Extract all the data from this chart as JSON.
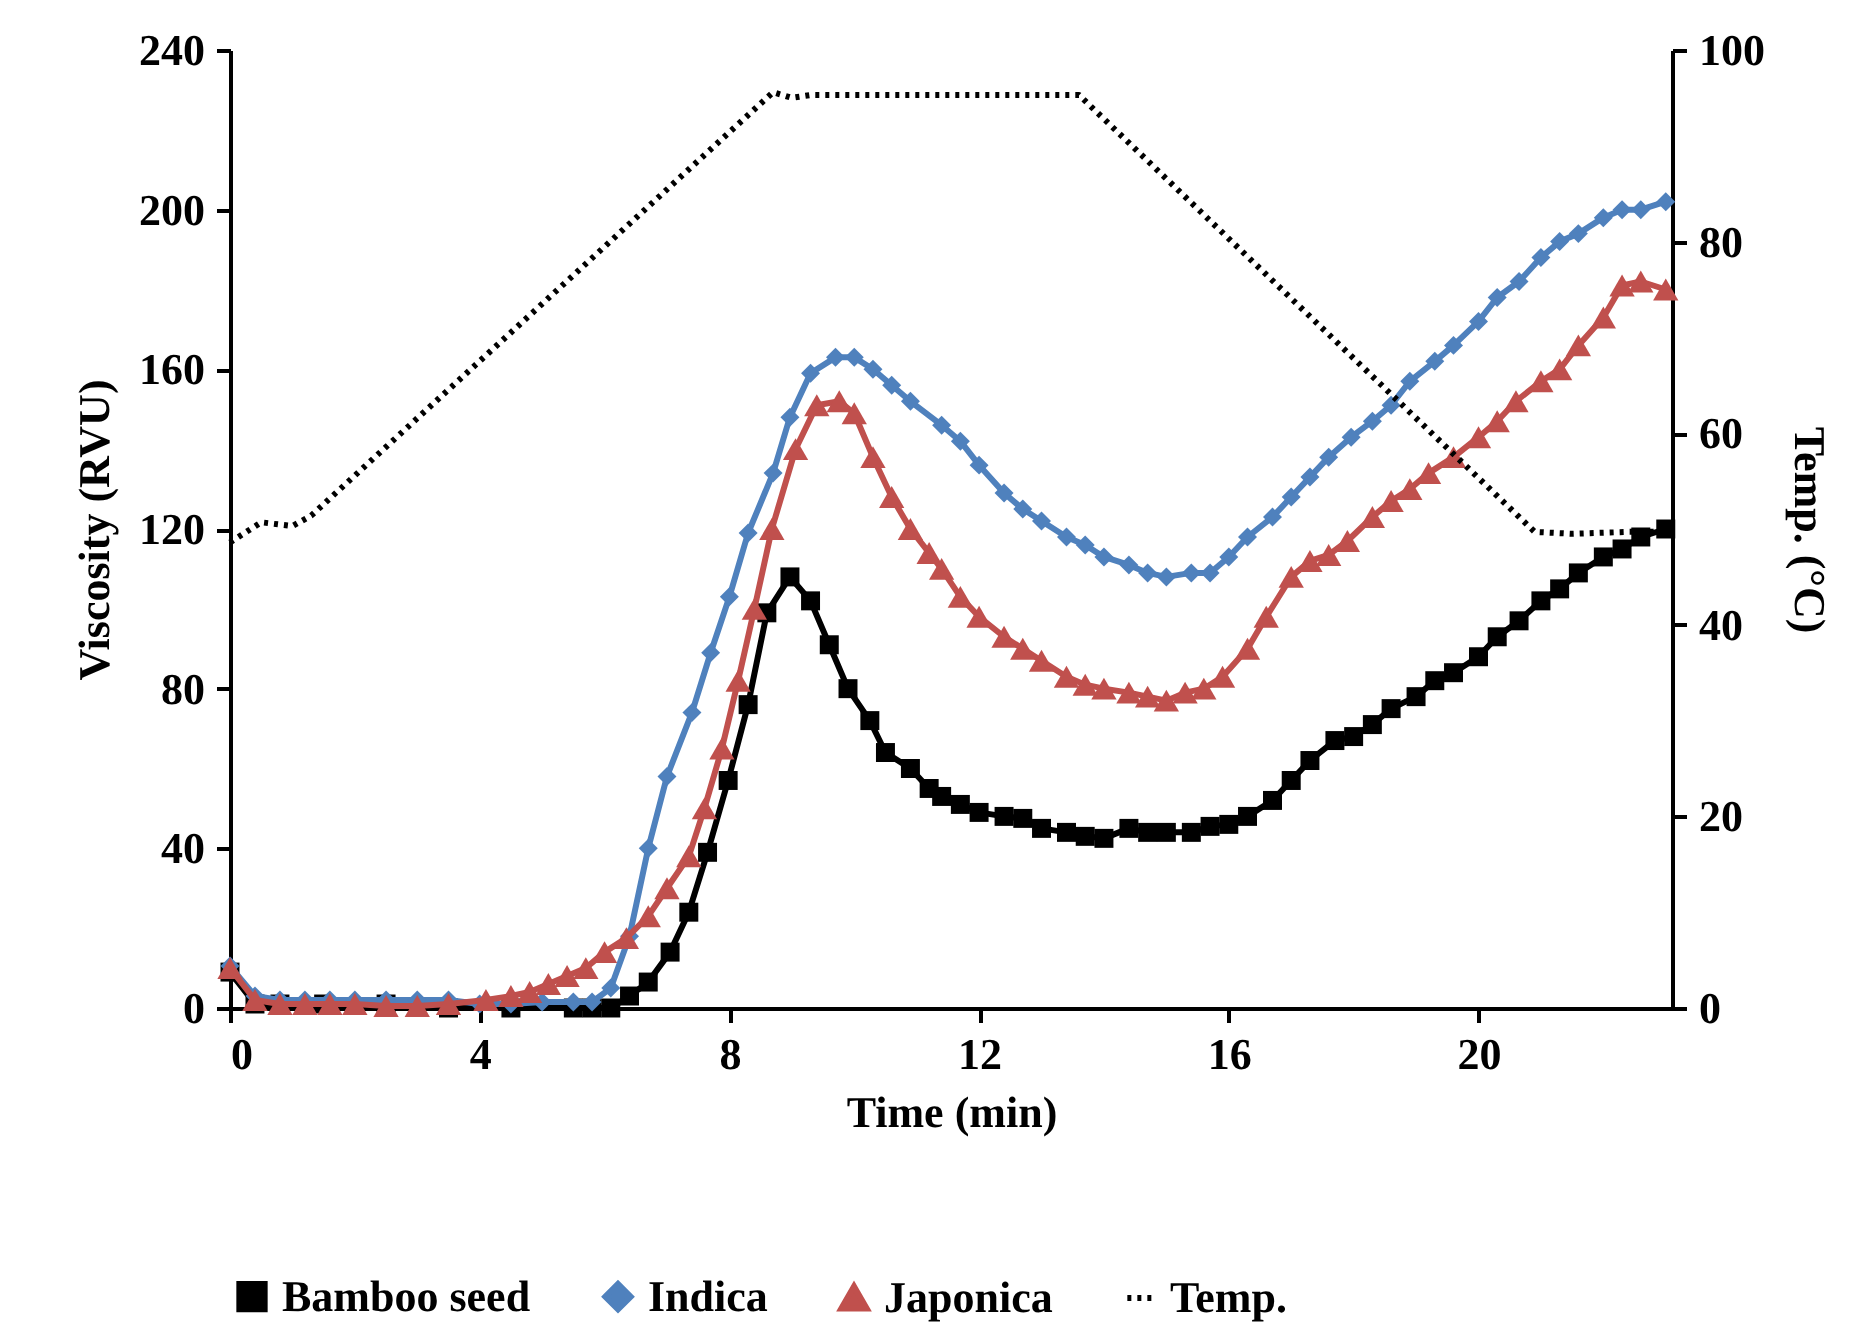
{
  "chart_data": {
    "type": "line",
    "xlabel": "Time (min)",
    "ylabel": "Viscosity  (RVU)",
    "y2label": "Temp. (°C)",
    "xlim": [
      0,
      23.1
    ],
    "xticks": [
      0,
      4,
      8,
      12,
      16,
      20
    ],
    "ylim": [
      0,
      240
    ],
    "yticks": [
      0,
      40,
      80,
      120,
      160,
      200,
      240
    ],
    "y2lim": [
      0,
      100
    ],
    "y2ticks": [
      0,
      20,
      40,
      60,
      80,
      100
    ],
    "grid": false,
    "legend": "bottom",
    "series": [
      {
        "name": "Bamboo seed",
        "color": "#000000",
        "marker": "square",
        "line_style": "solid",
        "x": [
          0,
          0.4,
          0.8,
          1.5,
          2.5,
          3.5,
          4.5,
          5.5,
          5.8,
          6.1,
          6.4,
          6.7,
          7.05,
          7.35,
          7.65,
          7.98,
          8.3,
          8.6,
          8.97,
          9.3,
          9.6,
          9.9,
          10.25,
          10.5,
          10.9,
          11.2,
          11.4,
          11.7,
          12.0,
          12.4,
          12.7,
          13.0,
          13.4,
          13.7,
          14.0,
          14.4,
          14.7,
          15.0,
          15.4,
          15.7,
          16.0,
          16.3,
          16.7,
          17.0,
          17.3,
          17.7,
          18.0,
          18.3,
          18.6,
          19.0,
          19.3,
          19.6,
          20.0,
          20.3,
          20.65,
          21.0,
          21.3,
          21.6,
          22.0,
          22.3,
          22.6,
          23.0
        ],
        "values": [
          9,
          1,
          1,
          1,
          1,
          0,
          0,
          0,
          0,
          0,
          3,
          6.5,
          14,
          24,
          39,
          57,
          76,
          99,
          108,
          102,
          91,
          80,
          72,
          64,
          60,
          55,
          53,
          51,
          49,
          48,
          47.5,
          45,
          44,
          43,
          42.5,
          45,
          44,
          44,
          44,
          45.5,
          46,
          48,
          52,
          57,
          62,
          67,
          68,
          71,
          75,
          78,
          82,
          84,
          88,
          93,
          97,
          102,
          105,
          109,
          113,
          115,
          118,
          120
        ]
      },
      {
        "name": "Indica",
        "color": "#4f81bd",
        "marker": "diamond",
        "line_style": "solid",
        "x": [
          0,
          0.4,
          0.8,
          1.2,
          1.6,
          2,
          2.5,
          3,
          3.5,
          4,
          4.5,
          5,
          5.5,
          5.8,
          6.1,
          6.4,
          6.7,
          7.0,
          7.4,
          7.7,
          8.0,
          8.3,
          8.7,
          8.97,
          9.3,
          9.7,
          10.0,
          10.3,
          10.6,
          10.9,
          11.4,
          11.7,
          12.0,
          12.4,
          12.7,
          13.0,
          13.4,
          13.7,
          14.0,
          14.4,
          14.7,
          15.0,
          15.4,
          15.7,
          16.0,
          16.3,
          16.7,
          17.0,
          17.3,
          17.6,
          17.96,
          18.3,
          18.6,
          18.9,
          19.3,
          19.6,
          20.0,
          20.3,
          20.65,
          21.0,
          21.3,
          21.6,
          22.0,
          22.3,
          22.6,
          23.0
        ],
        "values": [
          10.5,
          3,
          2,
          2,
          2,
          2,
          2,
          2,
          2,
          1,
          1,
          1.5,
          1.5,
          1.5,
          5,
          18,
          40,
          58,
          74,
          89,
          103,
          119,
          134,
          148,
          159,
          163,
          163,
          160,
          156,
          152,
          146,
          142,
          136,
          129,
          125,
          122,
          118,
          116,
          113,
          111,
          109,
          108,
          109,
          109,
          113,
          118,
          123,
          128,
          133,
          138,
          143,
          147,
          151,
          157,
          162,
          166,
          172,
          178,
          182,
          188,
          192,
          194,
          198,
          200,
          200,
          202
        ]
      },
      {
        "name": "Japonica",
        "color": "#c0504d",
        "marker": "triangle",
        "line_style": "solid",
        "x": [
          0,
          0.4,
          0.8,
          1.2,
          1.6,
          2,
          2.5,
          3,
          3.5,
          4.1,
          4.5,
          4.8,
          5.1,
          5.4,
          5.7,
          6.0,
          6.35,
          6.7,
          7.0,
          7.35,
          7.6,
          7.88,
          8.14,
          8.4,
          8.68,
          9.06,
          9.4,
          9.76,
          10.0,
          10.3,
          10.6,
          10.9,
          11.2,
          11.4,
          11.7,
          12.0,
          12.4,
          12.7,
          13.0,
          13.4,
          13.7,
          14.0,
          14.4,
          14.7,
          15.0,
          15.3,
          15.6,
          15.9,
          16.3,
          16.6,
          17.0,
          17.3,
          17.6,
          17.9,
          18.3,
          18.6,
          18.9,
          19.2,
          19.6,
          20.0,
          20.3,
          20.6,
          21.0,
          21.3,
          21.6,
          22.0,
          22.3,
          22.6,
          23.0
        ],
        "values": [
          10,
          2,
          1,
          1,
          1,
          1,
          0.5,
          0.5,
          1,
          2,
          3,
          4,
          6,
          8,
          10,
          14,
          17.5,
          23,
          30,
          38,
          50,
          65,
          82,
          100,
          120,
          140,
          151,
          152,
          149,
          138,
          128,
          120,
          114,
          110,
          103,
          98,
          93,
          90,
          87,
          83,
          81,
          80,
          79,
          78,
          77,
          79,
          80,
          83,
          90,
          98,
          108,
          112,
          113.5,
          117,
          123,
          127,
          130,
          134,
          138,
          143,
          147,
          152,
          157,
          160,
          166,
          173,
          181,
          182,
          180
        ]
      },
      {
        "name": "Temp.",
        "color": "#000000",
        "marker": "none",
        "line_style": "dotted",
        "axis": "y2",
        "x": [
          0,
          0.5,
          1.0,
          1.3,
          8.7,
          9.0,
          9.3,
          13.6,
          20.9,
          21.5,
          22.4,
          23.0
        ],
        "values": [
          48.6,
          50.7,
          50.3,
          51.4,
          95.6,
          95,
          95.3,
          95.3,
          49.7,
          49.5,
          49.7,
          49.7
        ]
      }
    ]
  }
}
